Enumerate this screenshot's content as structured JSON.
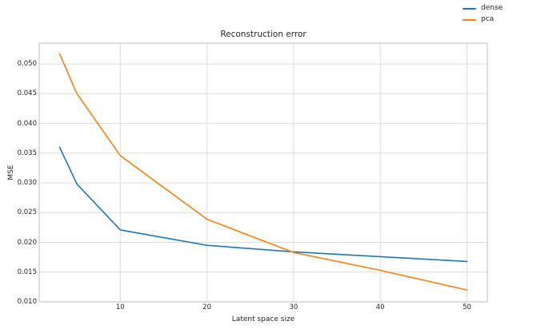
{
  "chart_data": {
    "type": "line",
    "title": "Reconstruction error",
    "xlabel": "Latent space size",
    "ylabel": "MSE",
    "x": [
      3,
      5,
      10,
      20,
      30,
      40,
      50
    ],
    "series": [
      {
        "name": "dense",
        "color": "#1f77b4",
        "values": [
          0.036,
          0.0298,
          0.0221,
          0.0195,
          0.0184,
          0.0176,
          0.0168
        ]
      },
      {
        "name": "pca",
        "color": "#ff7f0e",
        "values": [
          0.0517,
          0.045,
          0.0346,
          0.0239,
          0.0183,
          0.0153,
          0.012
        ]
      }
    ],
    "xticks": [
      10,
      20,
      30,
      40,
      50
    ],
    "xtick_labels": [
      "10",
      "20",
      "30",
      "40",
      "50"
    ],
    "yticks": [
      0.01,
      0.015,
      0.02,
      0.025,
      0.03,
      0.035,
      0.04,
      0.045,
      0.05
    ],
    "ytick_labels": [
      "0.010",
      "0.015",
      "0.020",
      "0.025",
      "0.030",
      "0.035",
      "0.040",
      "0.045",
      "0.050"
    ],
    "xlim": [
      0.65,
      52.35
    ],
    "ylim": [
      0.01,
      0.0535
    ],
    "grid": true,
    "legend": {
      "position": "upper-right-outside",
      "entries": [
        "dense",
        "pca"
      ]
    },
    "colors": {
      "grid": "#dcdcdc",
      "spine": "#c9c9c9",
      "text": "#262626",
      "background": "#ffffff"
    }
  }
}
